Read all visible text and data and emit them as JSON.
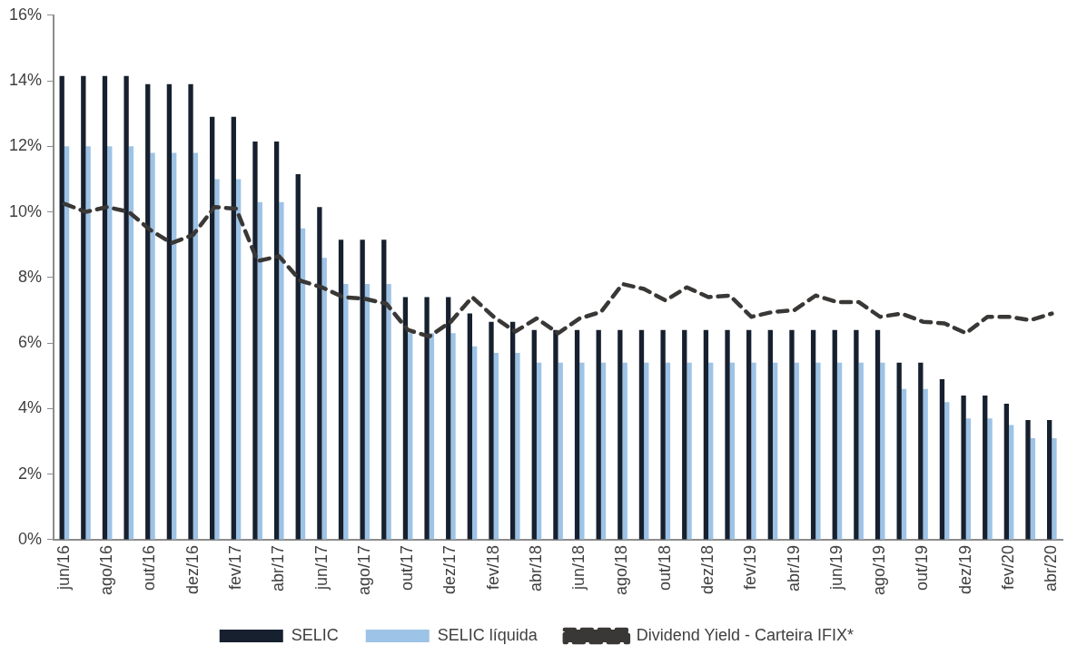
{
  "chart_data": {
    "type": "bar",
    "categories": [
      "jun/16",
      null,
      "ago/16",
      null,
      "out/16",
      null,
      "dez/16",
      null,
      "fev/17",
      null,
      "abr/17",
      null,
      "jun/17",
      null,
      "ago/17",
      null,
      "out/17",
      null,
      "dez/17",
      null,
      "fev/18",
      null,
      "abr/18",
      null,
      "jun/18",
      null,
      "ago/18",
      null,
      "out/18",
      null,
      "dez/18",
      null,
      "fev/19",
      null,
      "abr/19",
      null,
      "jun/19",
      null,
      "ago/19",
      null,
      "out/19",
      null,
      "dez/19",
      null,
      "fev/20",
      null,
      "abr/20"
    ],
    "series": [
      {
        "name": "SELIC",
        "color": "#17202e",
        "values": [
          14.15,
          14.15,
          14.15,
          14.15,
          13.9,
          13.9,
          13.9,
          12.9,
          12.9,
          12.15,
          12.15,
          11.15,
          10.15,
          9.15,
          9.15,
          9.15,
          7.4,
          7.4,
          7.4,
          6.9,
          6.65,
          6.65,
          6.4,
          6.4,
          6.4,
          6.4,
          6.4,
          6.4,
          6.4,
          6.4,
          6.4,
          6.4,
          6.4,
          6.4,
          6.4,
          6.4,
          6.4,
          6.4,
          6.4,
          5.4,
          5.4,
          4.9,
          4.4,
          4.4,
          4.15,
          3.65,
          3.65
        ]
      },
      {
        "name": "SELIC líquida",
        "color": "#9dc3e6",
        "values": [
          12.0,
          12.0,
          12.0,
          12.0,
          11.8,
          11.8,
          11.8,
          11.0,
          11.0,
          10.3,
          10.3,
          9.5,
          8.6,
          7.8,
          7.8,
          7.8,
          6.3,
          6.3,
          6.3,
          5.9,
          5.7,
          5.7,
          5.4,
          5.4,
          5.4,
          5.4,
          5.4,
          5.4,
          5.4,
          5.4,
          5.4,
          5.4,
          5.4,
          5.4,
          5.4,
          5.4,
          5.4,
          5.4,
          5.4,
          4.6,
          4.6,
          4.2,
          3.7,
          3.7,
          3.5,
          3.1,
          3.1
        ]
      },
      {
        "name": "Dividend Yield - Carteira IFIX*",
        "type": "line",
        "color": "#3a3836",
        "line_style": "dashed",
        "marker": "none",
        "values": [
          10.25,
          10.0,
          10.15,
          10.0,
          9.45,
          9.05,
          9.3,
          10.15,
          10.1,
          8.5,
          8.65,
          7.9,
          7.7,
          7.4,
          7.35,
          7.2,
          6.4,
          6.2,
          6.65,
          7.4,
          6.8,
          6.35,
          6.75,
          6.3,
          6.75,
          6.95,
          7.8,
          7.65,
          7.3,
          7.7,
          7.4,
          7.45,
          6.8,
          6.95,
          7.0,
          7.45,
          7.25,
          7.25,
          6.8,
          6.9,
          6.65,
          6.6,
          6.3,
          6.8,
          6.8,
          6.7,
          6.9
        ]
      }
    ],
    "ylim": [
      0,
      16
    ],
    "yticks": [
      {
        "value": 0,
        "label": "0%"
      },
      {
        "value": 2,
        "label": "2%"
      },
      {
        "value": 4,
        "label": "4%"
      },
      {
        "value": 6,
        "label": "6%"
      },
      {
        "value": 8,
        "label": "8%"
      },
      {
        "value": 10,
        "label": "10%"
      },
      {
        "value": 12,
        "label": "12%"
      },
      {
        "value": 14,
        "label": "14%"
      },
      {
        "value": 16,
        "label": "16%"
      }
    ],
    "grid": false,
    "legend": "bottom"
  }
}
